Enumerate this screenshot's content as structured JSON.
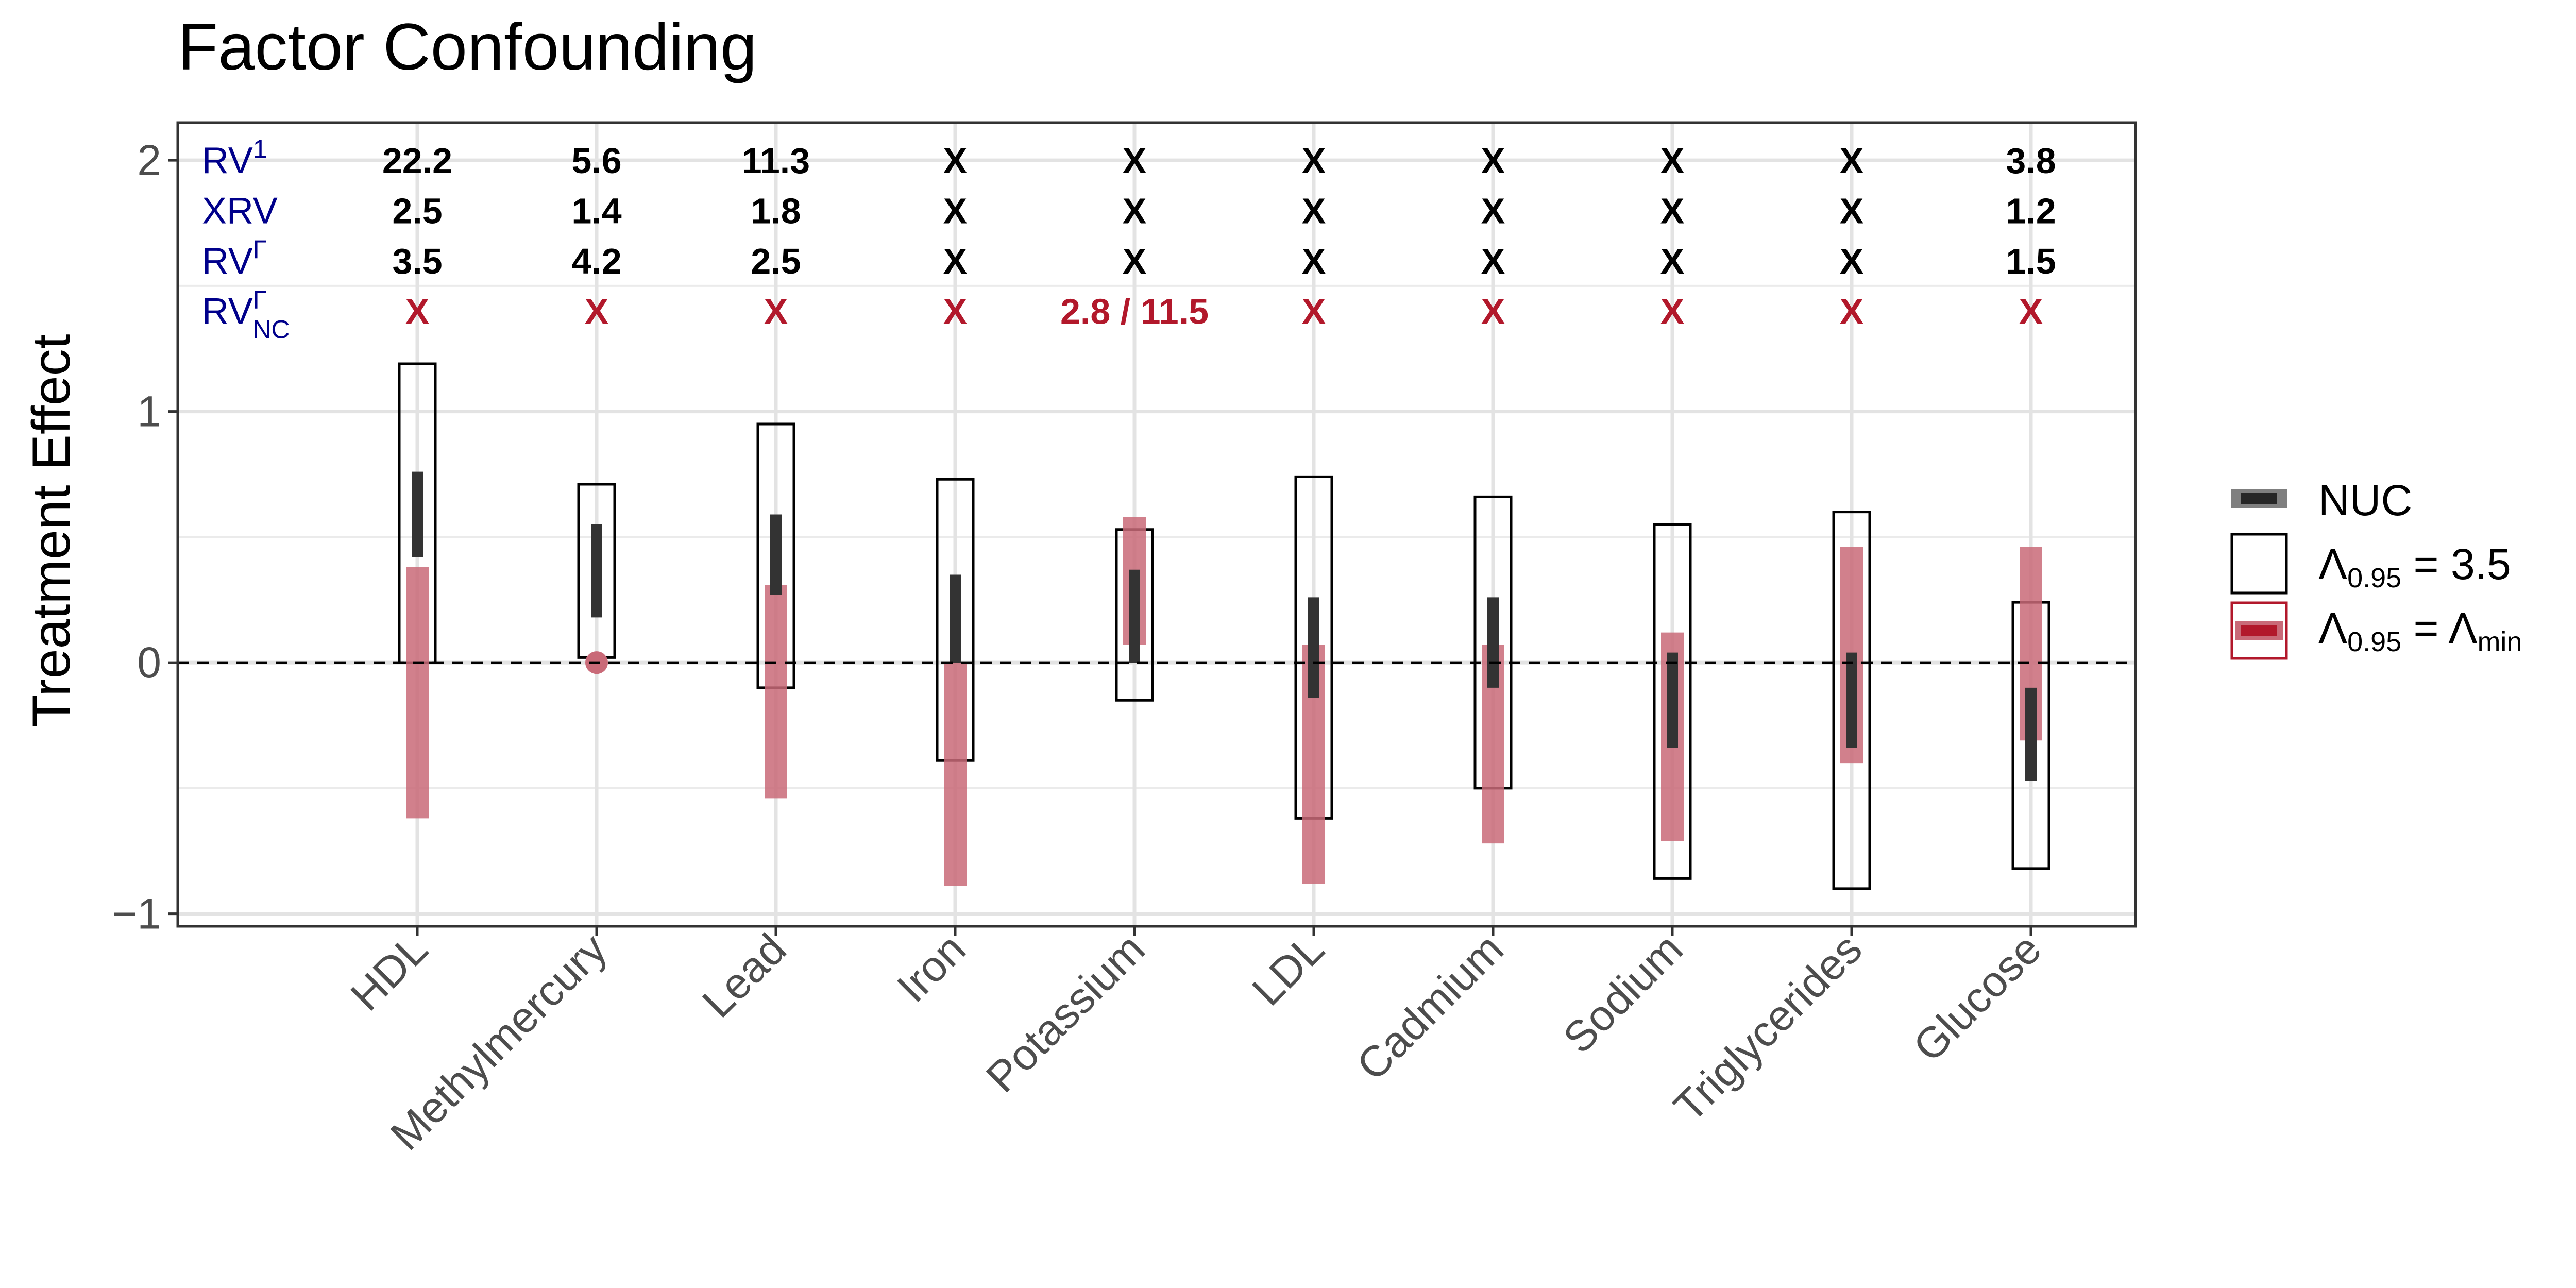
{
  "chart_data": {
    "type": "interval",
    "title": "Factor Confounding",
    "xlabel": "",
    "ylabel": "Treatment Effect",
    "ylim": [
      -1.05,
      2.15
    ],
    "yticks": [
      -1,
      0,
      1,
      2
    ],
    "ytick_labels": [
      "−1",
      "0",
      "1",
      "2"
    ],
    "grid": true,
    "reference_line": 0,
    "categories": [
      "HDL",
      "Methylmercury",
      "Lead",
      "Iron",
      "Potassium",
      "LDL",
      "Cadmium",
      "Sodium",
      "Triglycerides",
      "Glucose"
    ],
    "series": [
      {
        "name": "NUC",
        "kind": "interval",
        "color": "#333333",
        "low": [
          0.42,
          0.18,
          0.27,
          0.0,
          0.0,
          -0.14,
          -0.1,
          -0.34,
          -0.34,
          -0.47
        ],
        "high": [
          0.76,
          0.55,
          0.59,
          0.35,
          0.37,
          0.26,
          0.26,
          0.04,
          0.04,
          -0.1
        ]
      },
      {
        "name": "Λ0.95 = 3.5",
        "kind": "box",
        "color": "#000000",
        "low": [
          0.0,
          0.02,
          -0.1,
          -0.39,
          -0.15,
          -0.62,
          -0.5,
          -0.86,
          -0.9,
          -0.82
        ],
        "high": [
          1.19,
          0.71,
          0.95,
          0.73,
          0.53,
          0.74,
          0.66,
          0.55,
          0.6,
          0.24
        ]
      },
      {
        "name": "Λ0.95 = Λmin",
        "kind": "interval",
        "color": "#c96a78",
        "low": [
          -0.62,
          0.0,
          -0.54,
          -0.89,
          0.07,
          -0.88,
          -0.72,
          -0.71,
          -0.4,
          -0.31
        ],
        "high": [
          0.38,
          0.0,
          0.31,
          0.0,
          0.58,
          0.07,
          0.07,
          0.12,
          0.46,
          0.46
        ]
      }
    ],
    "table_rows": [
      {
        "key": "rv1",
        "label": "RV",
        "sup": "1",
        "sub": "",
        "color": "#000000",
        "values": [
          "22.2",
          "5.6",
          "11.3",
          "X",
          "X",
          "X",
          "X",
          "X",
          "X",
          "3.8"
        ]
      },
      {
        "key": "xrv",
        "label": "XRV",
        "sup": "",
        "sub": "",
        "color": "#000000",
        "values": [
          "2.5",
          "1.4",
          "1.8",
          "X",
          "X",
          "X",
          "X",
          "X",
          "X",
          "1.2"
        ]
      },
      {
        "key": "rvg",
        "label": "RV",
        "sup": "Γ",
        "sub": "",
        "color": "#000000",
        "values": [
          "3.5",
          "4.2",
          "2.5",
          "X",
          "X",
          "X",
          "X",
          "X",
          "X",
          "1.5"
        ]
      },
      {
        "key": "rvgnc",
        "label": "RV",
        "sup": "Γ",
        "sub": "NC",
        "color": "#b2182b",
        "values": [
          "X",
          "X",
          "X",
          "X",
          "2.8 / 11.5",
          "X",
          "X",
          "X",
          "X",
          "X"
        ]
      }
    ],
    "table_row_y": [
      2.0,
      1.8,
      1.6,
      1.4
    ],
    "legend": {
      "position": "right",
      "entries": [
        {
          "key": "nuc",
          "text": "NUC"
        },
        {
          "key": "box",
          "lambda": "Λ",
          "sub": "0.95",
          "rest": " = 3.5"
        },
        {
          "key": "lmin",
          "lambda": "Λ",
          "sub": "0.95",
          "rest": " = Λ",
          "rest_sub": "min"
        }
      ]
    }
  }
}
